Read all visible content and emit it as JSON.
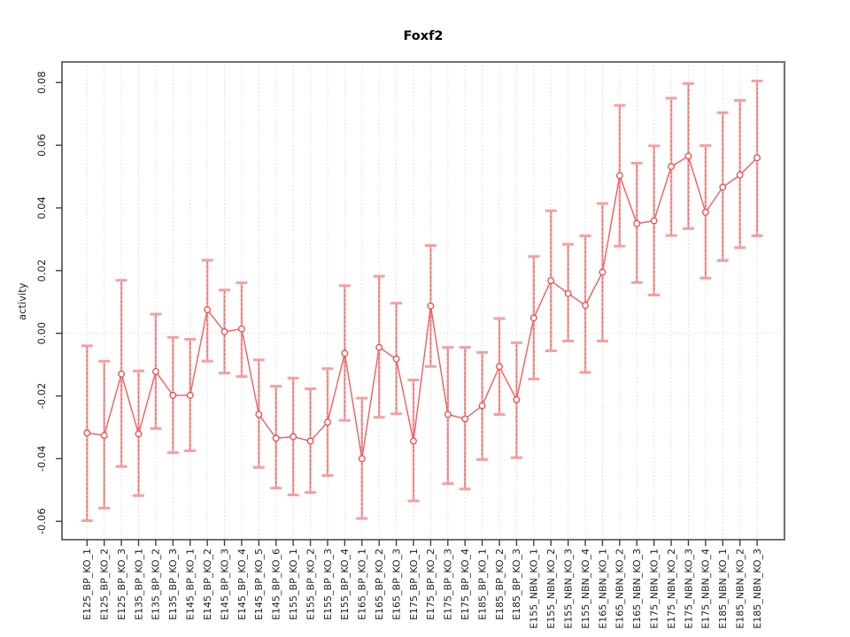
{
  "window_title": "Foxf2 activity plot",
  "chart_data": {
    "type": "line",
    "title": "Foxf2",
    "xlabel": "",
    "ylabel": "activity",
    "ylim": [
      -0.066,
      0.0866
    ],
    "yticks": [
      0.08,
      0.06,
      0.04,
      0.02,
      0.0,
      -0.02,
      -0.04,
      -0.06
    ],
    "ytick_labels": [
      "0.08",
      "0.06",
      "0.04",
      "0.02",
      "0.00",
      "-0.02",
      "-0.04",
      "-0.06"
    ],
    "grid": "vertical dotted gridline at every category; horizontal dotted line at y=0; full plot box",
    "legend": "none",
    "categories": [
      "E125_BP_KO_1",
      "E125_BP_KO_2",
      "E125_BP_KO_3",
      "E135_BP_KO_1",
      "E135_BP_KO_2",
      "E135_BP_KO_3",
      "E145_BP_KO_1",
      "E145_BP_KO_2",
      "E145_BP_KO_3",
      "E145_BP_KO_4",
      "E145_BP_KO_5",
      "E145_BP_KO_6",
      "E155_BP_KO_1",
      "E155_BP_KO_2",
      "E155_BP_KO_3",
      "E155_BP_KO_4",
      "E165_BP_KO_1",
      "E165_BP_KO_2",
      "E165_BP_KO_3",
      "E175_BP_KO_1",
      "E175_BP_KO_2",
      "E175_BP_KO_3",
      "E175_BP_KO_4",
      "E185_BP_KO_1",
      "E185_BP_KO_2",
      "E185_BP_KO_3",
      "E155_NBN_KO_1",
      "E155_NBN_KO_2",
      "E155_NBN_KO_3",
      "E155_NBN_KO_4",
      "E165_NBN_KO_1",
      "E165_NBN_KO_2",
      "E165_NBN_KO_3",
      "E175_NBN_KO_1",
      "E175_NBN_KO_2",
      "E175_NBN_KO_3",
      "E175_NBN_KO_4",
      "E185_NBN_KO_1",
      "E185_NBN_KO_2",
      "E185_NBN_KO_3"
    ],
    "series": [
      {
        "name": "activity",
        "values": [
          -0.0318,
          -0.0326,
          -0.013,
          -0.0321,
          -0.0122,
          -0.0198,
          -0.0198,
          0.0075,
          0.0005,
          0.0014,
          -0.0259,
          -0.0335,
          -0.033,
          -0.0344,
          -0.0284,
          -0.0064,
          -0.04,
          -0.0045,
          -0.0082,
          -0.0344,
          0.0087,
          -0.0259,
          -0.0273,
          -0.0231,
          -0.0106,
          -0.0212,
          0.0049,
          0.0168,
          0.0127,
          0.0089,
          0.0195,
          0.0503,
          0.035,
          0.0359,
          0.0532,
          0.0565,
          0.0386,
          0.0466,
          0.0505,
          0.056
        ],
        "error_low": [
          -0.0598,
          -0.0558,
          -0.0425,
          -0.0518,
          -0.0304,
          -0.0381,
          -0.0375,
          -0.0089,
          -0.0127,
          -0.0138,
          -0.0428,
          -0.0494,
          -0.0516,
          -0.0508,
          -0.0454,
          -0.0278,
          -0.0591,
          -0.0268,
          -0.0257,
          -0.0535,
          -0.0106,
          -0.048,
          -0.0497,
          -0.0403,
          -0.0259,
          -0.0397,
          -0.0146,
          -0.0056,
          -0.0025,
          -0.0125,
          -0.0025,
          0.0278,
          0.0162,
          0.0122,
          0.0312,
          0.0334,
          0.0176,
          0.0232,
          0.0273,
          0.0311
        ],
        "error_high": [
          -0.004,
          -0.0089,
          0.0169,
          -0.012,
          0.0061,
          -0.0013,
          -0.0019,
          0.0233,
          0.0138,
          0.0161,
          -0.0085,
          -0.0169,
          -0.0143,
          -0.0177,
          -0.0113,
          0.0152,
          -0.0207,
          0.0182,
          0.0096,
          -0.0149,
          0.028,
          -0.0045,
          -0.0045,
          -0.0061,
          0.0047,
          -0.003,
          0.0245,
          0.0391,
          0.0284,
          0.0311,
          0.0414,
          0.0727,
          0.0543,
          0.0598,
          0.075,
          0.0797,
          0.0599,
          0.0704,
          0.0743,
          0.0805
        ]
      }
    ],
    "colors": {
      "errorbar": "#f4a0a0",
      "errorbar_dash": "#e05a5a",
      "line": "#ed5e5e",
      "point": "#e84d4d",
      "grid": "#d9d9d9",
      "box": "#606060",
      "tick": "#404040",
      "text": "#202020"
    }
  }
}
